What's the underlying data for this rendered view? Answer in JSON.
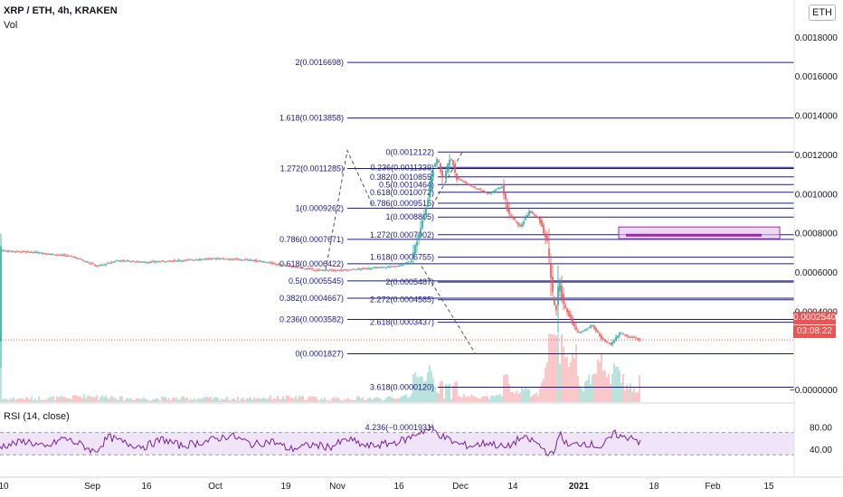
{
  "header": {
    "symbol_title": "XRP / ETH, 4h, KRAKEN",
    "volume_label": "Vol",
    "rsi_label": "RSI (14, close)",
    "currency_badge": "ETH"
  },
  "price_axis": {
    "ticks": [
      "0.0018000",
      "0.0016000",
      "0.0014000",
      "0.0012000",
      "0.0010000",
      "0.0008000",
      "0.0006000",
      "0.0004000",
      "−0.0000000"
    ],
    "tick_values": [
      0.0018,
      0.0016,
      0.0014,
      0.0012,
      0.001,
      0.0008,
      0.0006,
      0.0004,
      0.0
    ],
    "last_price_label": "0.0002540",
    "countdown_label": "03:08:22"
  },
  "rsi_axis": {
    "ticks": [
      "80.00",
      "40.00"
    ],
    "tick_values": [
      80,
      40
    ]
  },
  "time_axis": {
    "labels": [
      "10",
      "Sep",
      "16",
      "Oct",
      "19",
      "Nov",
      "16",
      "Dec",
      "14",
      "2021",
      "18",
      "Feb",
      "15"
    ]
  },
  "chart_data": {
    "type": "candlestick",
    "symbol": "XRP/ETH",
    "interval": "4h",
    "exchange": "KRAKEN",
    "last_price": 0.000254,
    "price_path": [
      [
        0,
        0.00071
      ],
      [
        40,
        0.0007
      ],
      [
        80,
        0.00068
      ],
      [
        108,
        0.00063
      ],
      [
        130,
        0.00066
      ],
      [
        160,
        0.00065
      ],
      [
        200,
        0.00066
      ],
      [
        240,
        0.00067
      ],
      [
        280,
        0.00066
      ],
      [
        320,
        0.00063
      ],
      [
        350,
        0.00061
      ],
      [
        380,
        0.00061
      ],
      [
        410,
        0.00062
      ],
      [
        440,
        0.00063
      ],
      [
        455,
        0.00066
      ],
      [
        466,
        0.00085
      ],
      [
        472,
        0.00094
      ],
      [
        478,
        0.00112
      ],
      [
        484,
        0.00118
      ],
      [
        490,
        0.00107
      ],
      [
        498,
        0.00119
      ],
      [
        505,
        0.00108
      ],
      [
        520,
        0.00104
      ],
      [
        540,
        0.001
      ],
      [
        555,
        0.00104
      ],
      [
        562,
        0.0009
      ],
      [
        575,
        0.00083
      ],
      [
        585,
        0.00091
      ],
      [
        596,
        0.00087
      ],
      [
        605,
        0.00075
      ],
      [
        610,
        0.0005
      ],
      [
        615,
        0.00039
      ],
      [
        618,
        0.00057
      ],
      [
        622,
        0.00045
      ],
      [
        630,
        0.00037
      ],
      [
        638,
        0.00029
      ],
      [
        645,
        0.0003
      ],
      [
        655,
        0.00033
      ],
      [
        665,
        0.00026
      ],
      [
        675,
        0.00023
      ],
      [
        685,
        0.00029
      ],
      [
        695,
        0.00027
      ],
      [
        705,
        0.00026
      ],
      [
        708,
        0.00025
      ]
    ],
    "fib_retracement": {
      "levels": [
        {
          "label": "2(0.0016698)",
          "price": 0.0016698
        },
        {
          "label": "1.618(0.0013858)",
          "price": 0.0013858
        },
        {
          "label": "1.272(0.0011285)",
          "price": 0.0011285
        },
        {
          "label": "1(0.0009262)",
          "price": 0.0009262
        },
        {
          "label": "0.786(0.0007671)",
          "price": 0.0007671
        },
        {
          "label": "0.618(0.0006422)",
          "price": 0.0006422
        },
        {
          "label": "0.5(0.0005545)",
          "price": 0.0005545
        },
        {
          "label": "0.382(0.0004667)",
          "price": 0.0004667
        },
        {
          "label": "0.236(0.0003582)",
          "price": 0.0003582
        },
        {
          "label": "0(0.0001827)",
          "price": 0.0001827
        }
      ]
    },
    "fib_extension": {
      "levels": [
        {
          "label": "0(0.0012122)",
          "price": 0.0012122
        },
        {
          "label": "0.236(0.0011339)",
          "price": 0.0011339
        },
        {
          "label": "0.382(0.0010855)",
          "price": 0.0010855
        },
        {
          "label": "0.5(0.0010464)",
          "price": 0.0010464
        },
        {
          "label": "0.618(0.0010072)",
          "price": 0.0010072
        },
        {
          "label": "0.786(0.0009515)",
          "price": 0.0009515
        },
        {
          "label": "1(0.0008805)",
          "price": 0.0008805
        },
        {
          "label": "1.272(0.0007902)",
          "price": 0.0007902
        },
        {
          "label": "1.618(0.0006755)",
          "price": 0.0006755
        },
        {
          "label": "2(0.0005487)",
          "price": 0.0005487
        },
        {
          "label": "2.272(0.0004585)",
          "price": 0.0004585
        },
        {
          "label": "2.618(0.0003437)",
          "price": 0.0003437
        },
        {
          "label": "3.618(0.0000120)",
          "price": 1.2e-05
        },
        {
          "label": "4.236(−0.0001931)",
          "price": -0.0001931
        }
      ]
    },
    "target_zone": {
      "price_low": 0.00077,
      "price_high": 0.00083
    },
    "rsi": {
      "period": 14,
      "upper_band": 70,
      "lower_band": 30,
      "path": [
        [
          0,
          45
        ],
        [
          30,
          55
        ],
        [
          50,
          42
        ],
        [
          70,
          60
        ],
        [
          90,
          48
        ],
        [
          105,
          35
        ],
        [
          120,
          62
        ],
        [
          140,
          50
        ],
        [
          160,
          45
        ],
        [
          180,
          58
        ],
        [
          200,
          46
        ],
        [
          230,
          55
        ],
        [
          255,
          65
        ],
        [
          280,
          48
        ],
        [
          300,
          55
        ],
        [
          320,
          40
        ],
        [
          345,
          48
        ],
        [
          365,
          44
        ],
        [
          385,
          58
        ],
        [
          405,
          45
        ],
        [
          430,
          50
        ],
        [
          450,
          58
        ],
        [
          465,
          72
        ],
        [
          478,
          76
        ],
        [
          490,
          62
        ],
        [
          505,
          50
        ],
        [
          520,
          46
        ],
        [
          540,
          52
        ],
        [
          560,
          42
        ],
        [
          575,
          60
        ],
        [
          590,
          55
        ],
        [
          605,
          35
        ],
        [
          612,
          28
        ],
        [
          618,
          70
        ],
        [
          628,
          45
        ],
        [
          645,
          52
        ],
        [
          665,
          44
        ],
        [
          680,
          68
        ],
        [
          690,
          60
        ],
        [
          700,
          64
        ],
        [
          708,
          50
        ]
      ]
    },
    "colors": {
      "up": "#26a69a",
      "down": "#ef5350",
      "fib": "#1a1a8c",
      "rsi": "#7b1fa2",
      "zone": "#9c27b0"
    }
  }
}
